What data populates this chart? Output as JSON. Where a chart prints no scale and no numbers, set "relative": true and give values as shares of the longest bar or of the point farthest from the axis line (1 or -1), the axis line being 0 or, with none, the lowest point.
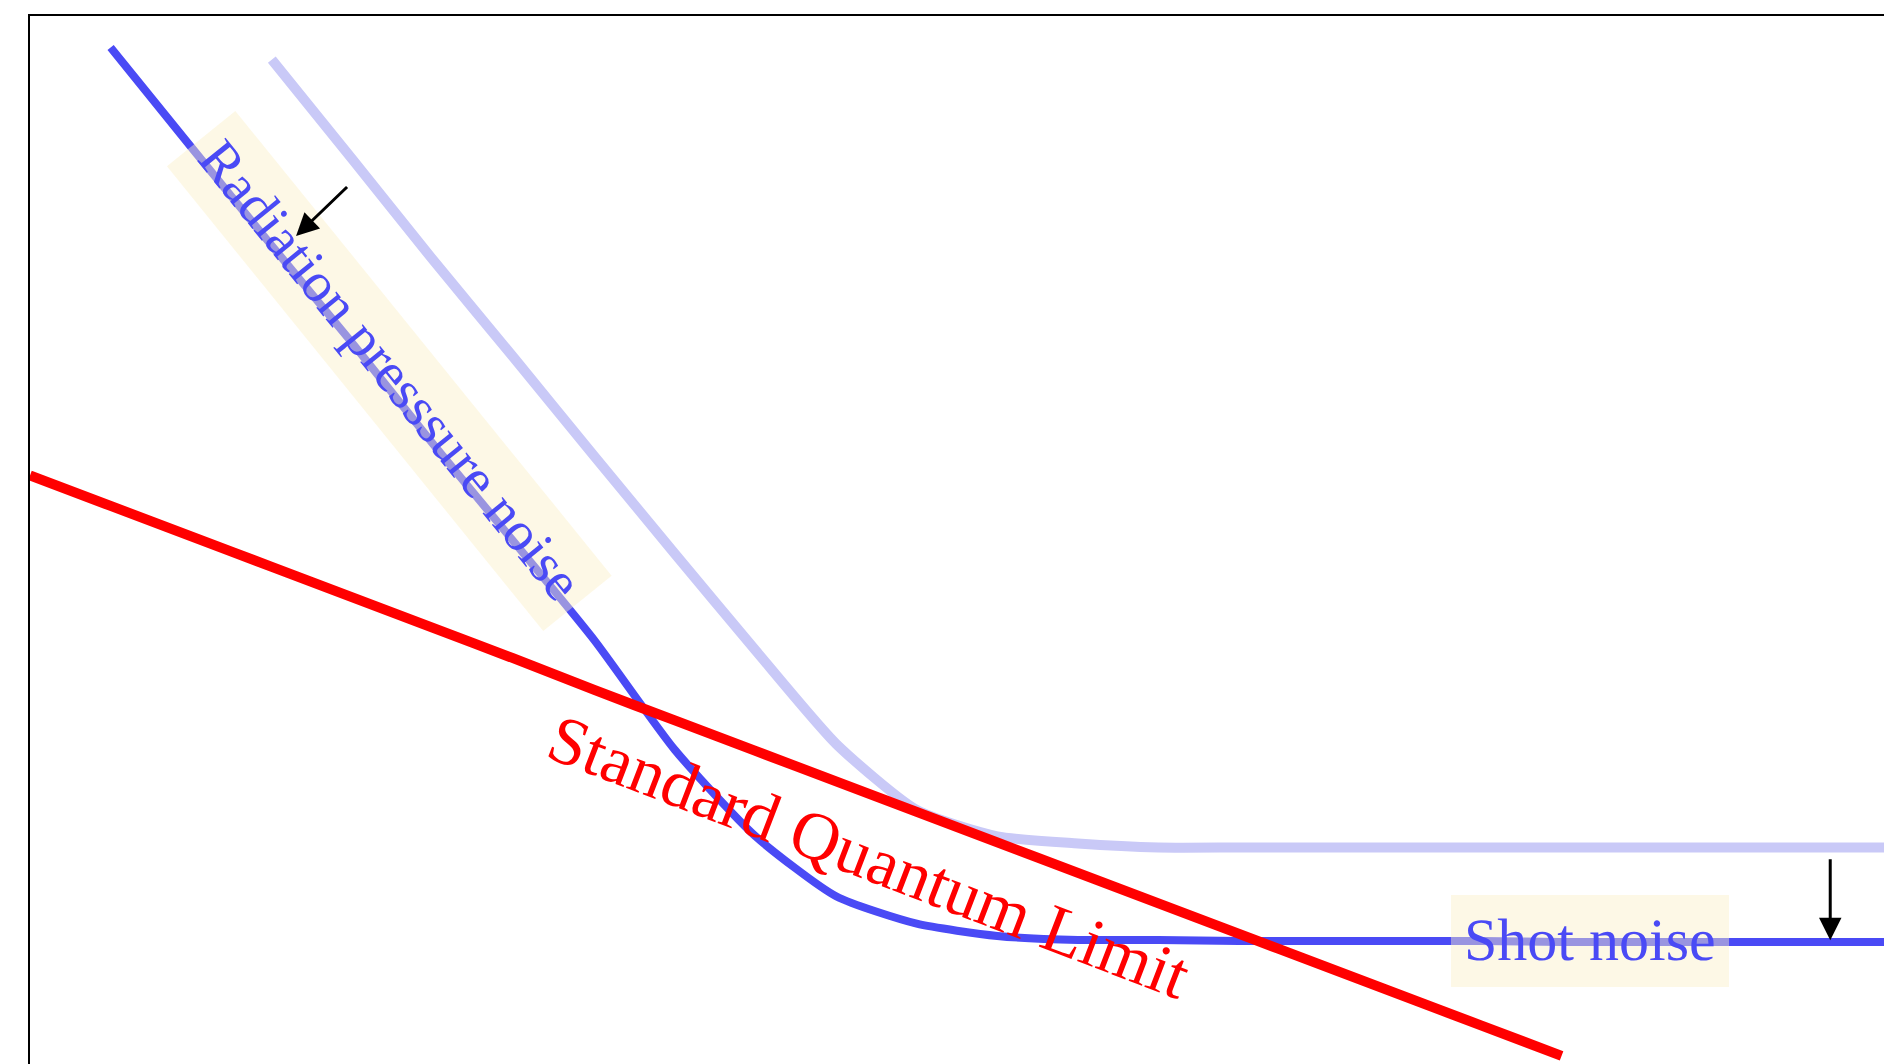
{
  "chart_data": {
    "type": "line",
    "relative": true,
    "marker": "none",
    "line_style": "solid",
    "categories": [
      null,
      null,
      null,
      null,
      null,
      null,
      null,
      null,
      null,
      null,
      null,
      null,
      null,
      null,
      null,
      null,
      null,
      null,
      null,
      null,
      null,
      null,
      null,
      null
    ],
    "series": [
      {
        "color": "#c9c9f7",
        "values": [
          null,
          null,
          null,
          0.988,
          0.89,
          0.791,
          0.695,
          0.598,
          0.502,
          0.407,
          0.315,
          0.25,
          0.224,
          0.217,
          0.213,
          0.213,
          0.213,
          0.213,
          0.213,
          0.213,
          0.213,
          0.213,
          0.213,
          0.213
        ]
      },
      {
        "color": "#4a4af5",
        "values": [
          null,
          1.0,
          0.902,
          0.805,
          0.709,
          0.61,
          0.514,
          0.417,
          0.309,
          0.224,
          0.165,
          0.138,
          0.126,
          0.122,
          0.122,
          0.121,
          0.121,
          0.121,
          0.121,
          0.12,
          0.12,
          0.12,
          0.12,
          0.12
        ]
      },
      {
        "color": "#ff0000",
        "values": [
          0.579,
          0.549,
          0.519,
          0.489,
          0.459,
          0.429,
          0.399,
          0.368,
          0.338,
          0.308,
          0.278,
          0.248,
          0.218,
          0.188,
          0.158,
          0.128,
          0.098,
          0.068,
          0.038,
          0.008,
          null,
          null,
          null,
          null
        ]
      }
    ],
    "annotations": [
      "Radiation presssure noise",
      "Standard Quantum Limit",
      "Shot noise"
    ]
  }
}
